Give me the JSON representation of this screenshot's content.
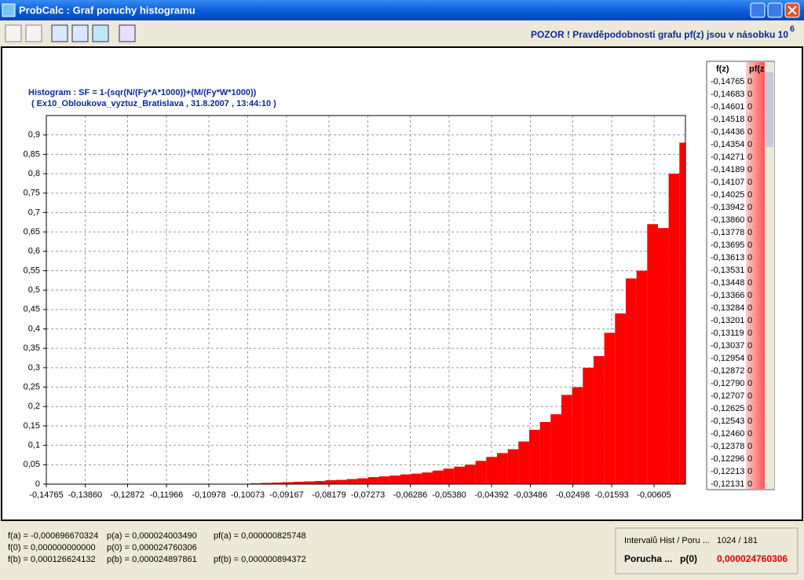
{
  "window": {
    "title": "ProbCalc : Graf poruchy histogramu",
    "notice": "POZOR !  Pravděpodobnosti grafu pf(z) jsou v násobku 10",
    "notice_exponent": "6"
  },
  "chart_data": {
    "type": "histogram",
    "title": "Histogram : SF = 1-(sqr(N/(Fy*A*1000))+(M/(Fy*W*1000))",
    "subtitle": "( Ex10_Obloukova_vyztuz_Bratislava , 31.8.2007 , 13:44:10 )",
    "bins": [
      -0.14765,
      -0.14515,
      -0.14265,
      -0.14015,
      -0.13765,
      -0.13515,
      -0.13265,
      -0.13015,
      -0.12765,
      -0.12515,
      -0.12265,
      -0.12015,
      -0.11765,
      -0.11515,
      -0.11265,
      -0.11015,
      -0.10765,
      -0.10515,
      -0.10265,
      -0.10015,
      -0.09765,
      -0.09515,
      -0.09265,
      -0.09015,
      -0.08765,
      -0.08515,
      -0.08265,
      -0.08015,
      -0.07765,
      -0.07515,
      -0.07265,
      -0.07015,
      -0.06765,
      -0.06515,
      -0.06265,
      -0.06015,
      -0.05765,
      -0.05515,
      -0.05265,
      -0.05015,
      -0.04765,
      -0.04515,
      -0.04265,
      -0.04015,
      -0.03765,
      -0.03515,
      -0.03265,
      -0.03015,
      -0.02765,
      -0.02515,
      -0.02265,
      -0.02015,
      -0.01765,
      -0.01515,
      -0.01265,
      -0.01015,
      -0.00765,
      -0.00515,
      -0.00265,
      -0.00015,
      0.00126
    ],
    "values": [
      0,
      0,
      0,
      0,
      0,
      0,
      0,
      0,
      0,
      0,
      0,
      0,
      0,
      0,
      0,
      0,
      0,
      0,
      0.001,
      0.002,
      0.003,
      0.004,
      0.005,
      0.006,
      0.007,
      0.008,
      0.01,
      0.011,
      0.013,
      0.015,
      0.018,
      0.02,
      0.022,
      0.025,
      0.027,
      0.03,
      0.035,
      0.04,
      0.045,
      0.05,
      0.06,
      0.07,
      0.08,
      0.09,
      0.11,
      0.14,
      0.16,
      0.18,
      0.23,
      0.25,
      0.3,
      0.33,
      0.39,
      0.44,
      0.53,
      0.55,
      0.67,
      0.66,
      0.8,
      0.88
    ],
    "color": "#ff0000",
    "xlim": [
      -0.14765,
      0.00126
    ],
    "ylim": [
      0,
      0.95
    ],
    "grid": true,
    "xticks": [
      {
        "value": -0.14765,
        "label": "-0,14765"
      },
      {
        "value": -0.1386,
        "label": "-0,13860"
      },
      {
        "value": -0.12872,
        "label": "-0,12872"
      },
      {
        "value": -0.11966,
        "label": "-0,11966"
      },
      {
        "value": -0.10978,
        "label": "-0,10978"
      },
      {
        "value": -0.10073,
        "label": "-0,10073"
      },
      {
        "value": -0.09167,
        "label": "-0,09167"
      },
      {
        "value": -0.08179,
        "label": "-0,08179"
      },
      {
        "value": -0.07273,
        "label": "-0,07273"
      },
      {
        "value": -0.06286,
        "label": "-0,06286"
      },
      {
        "value": -0.0538,
        "label": "-0,05380"
      },
      {
        "value": -0.04392,
        "label": "-0,04392"
      },
      {
        "value": -0.03486,
        "label": "-0,03486"
      },
      {
        "value": -0.02498,
        "label": "-0,02498"
      },
      {
        "value": -0.01593,
        "label": "-0,01593"
      },
      {
        "value": -0.00605,
        "label": "-0,00605"
      }
    ],
    "yticks": [
      0,
      {
        "value": 0.05,
        "label": "0,05"
      },
      {
        "value": 0.1,
        "label": "0,1"
      },
      {
        "value": 0.15,
        "label": "0,15"
      },
      {
        "value": 0.2,
        "label": "0,2"
      },
      {
        "value": 0.25,
        "label": "0,25"
      },
      {
        "value": 0.3,
        "label": "0,3"
      },
      {
        "value": 0.35,
        "label": "0,35"
      },
      {
        "value": 0.4,
        "label": "0,4"
      },
      {
        "value": 0.45,
        "label": "0,45"
      },
      {
        "value": 0.5,
        "label": "0,5"
      },
      {
        "value": 0.55,
        "label": "0,55"
      },
      {
        "value": 0.6,
        "label": "0,6"
      },
      {
        "value": 0.65,
        "label": "0,65"
      },
      {
        "value": 0.7,
        "label": "0,7"
      },
      {
        "value": 0.75,
        "label": "0,75"
      },
      {
        "value": 0.8,
        "label": "0,8"
      },
      {
        "value": 0.85,
        "label": "0,85"
      },
      {
        "value": 0.9,
        "label": "0,9"
      }
    ]
  },
  "side_table": {
    "header": [
      "f(z)",
      "pf(z"
    ],
    "rows": [
      [
        "-0,14765",
        "0"
      ],
      [
        "-0,14683",
        "0"
      ],
      [
        "-0,14601",
        "0"
      ],
      [
        "-0,14518",
        "0"
      ],
      [
        "-0,14436",
        "0"
      ],
      [
        "-0,14354",
        "0"
      ],
      [
        "-0,14271",
        "0"
      ],
      [
        "-0,14189",
        "0"
      ],
      [
        "-0,14107",
        "0"
      ],
      [
        "-0,14025",
        "0"
      ],
      [
        "-0,13942",
        "0"
      ],
      [
        "-0,13860",
        "0"
      ],
      [
        "-0,13778",
        "0"
      ],
      [
        "-0,13695",
        "0"
      ],
      [
        "-0,13613",
        "0"
      ],
      [
        "-0,13531",
        "0"
      ],
      [
        "-0,13448",
        "0"
      ],
      [
        "-0,13366",
        "0"
      ],
      [
        "-0,13284",
        "0"
      ],
      [
        "-0,13201",
        "0"
      ],
      [
        "-0,13119",
        "0"
      ],
      [
        "-0,13037",
        "0"
      ],
      [
        "-0,12954",
        "0"
      ],
      [
        "-0,12872",
        "0"
      ],
      [
        "-0,12790",
        "0"
      ],
      [
        "-0,12707",
        "0"
      ],
      [
        "-0,12625",
        "0"
      ],
      [
        "-0,12543",
        "0"
      ],
      [
        "-0,12460",
        "0"
      ],
      [
        "-0,12378",
        "0"
      ],
      [
        "-0,12296",
        "0"
      ],
      [
        "-0,12213",
        "0"
      ],
      [
        "-0,12131",
        "0"
      ]
    ]
  },
  "status": {
    "left": [
      [
        "f(a) = -0,000696670324",
        "p(a) = 0,000024003490",
        "pf(a) = 0,000000825748"
      ],
      [
        "f(0) =  0,000000000000",
        "p(0) = 0,000024760306"
      ],
      [
        "f(b) =  0,000126624132",
        "p(b) = 0,000024897861",
        "pf(b) =  0,000000894372"
      ]
    ],
    "intervals_label": "Intervalů Hist / Poru ...",
    "intervals_value": "1024 / 181",
    "failure_label": "Porucha ...",
    "failure_key": "p(0)",
    "failure_value": "0,000024760306"
  }
}
